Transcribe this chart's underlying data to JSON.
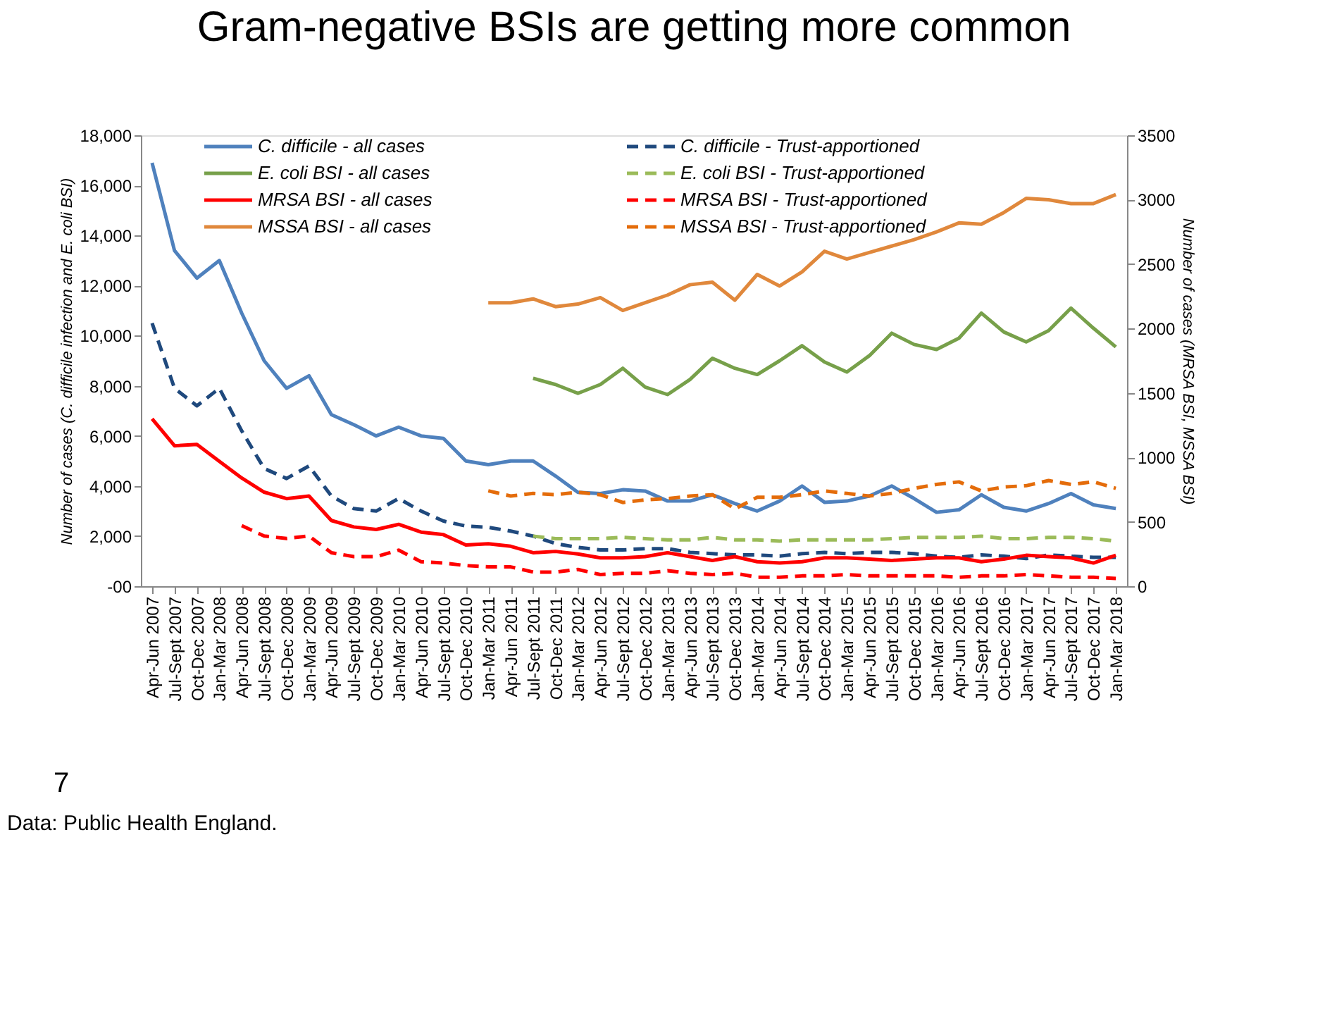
{
  "chart_data": {
    "type": "line",
    "title": "Gram-negative BSIs are getting more common",
    "categories": [
      "Apr-Jun 2007",
      "Jul-Sept 2007",
      "Oct-Dec 2007",
      "Jan-Mar 2008",
      "Apr-Jun 2008",
      "Jul-Sept 2008",
      "Oct-Dec 2008",
      "Jan-Mar 2009",
      "Apr-Jun 2009",
      "Jul-Sept 2009",
      "Oct-Dec 2009",
      "Jan-Mar 2010",
      "Apr-Jun 2010",
      "Jul-Sept 2010",
      "Oct-Dec 2010",
      "Jan-Mar 2011",
      "Apr-Jun 2011",
      "Jul-Sept 2011",
      "Oct-Dec 2011",
      "Jan-Mar 2012",
      "Apr-Jun 2012",
      "Jul-Sept 2012",
      "Oct-Dec 2012",
      "Jan-Mar 2013",
      "Apr-Jun 2013",
      "Jul-Sept 2013",
      "Oct-Dec 2013",
      "Jan-Mar 2014",
      "Apr-Jun 2014",
      "Jul-Sept 2014",
      "Oct-Dec 2014",
      "Jan-Mar 2015",
      "Apr-Jun 2015",
      "Jul-Sept 2015",
      "Oct-Dec 2015",
      "Jan-Mar 2016",
      "Apr-Jun 2016",
      "Jul-Sept 2016",
      "Oct-Dec 2016",
      "Jan-Mar 2017",
      "Apr-Jun 2017",
      "Jul-Sept 2017",
      "Oct-Dec 2017",
      "Jan-Mar 2018"
    ],
    "ylabel": "Number of cases (C. difficile infection and E. coli BSI)",
    "y2label": "Number of cases (MRSA BSI, MSSA BSI)",
    "ylim": [
      0,
      18000
    ],
    "yticks": [
      {
        "value": 0,
        "label": "-00"
      },
      {
        "value": 2000,
        "label": "2,000"
      },
      {
        "value": 4000,
        "label": "4,000"
      },
      {
        "value": 6000,
        "label": "6,000"
      },
      {
        "value": 8000,
        "label": "8,000"
      },
      {
        "value": 10000,
        "label": "10,000"
      },
      {
        "value": 12000,
        "label": "12,000"
      },
      {
        "value": 14000,
        "label": "14,000"
      },
      {
        "value": 16000,
        "label": "16,000"
      },
      {
        "value": 18000,
        "label": "18,000"
      }
    ],
    "y2lim": [
      0,
      3500
    ],
    "y2ticks": [
      0,
      500,
      1000,
      1500,
      2000,
      2500,
      3000,
      3500
    ],
    "grid": false,
    "legend": "top",
    "marker": "none",
    "annotations": [
      "7",
      "Data: Public Health England."
    ],
    "series": [
      {
        "name": "C. difficile - all cases",
        "color": "#4f81bd",
        "line_style": "solid",
        "values": [
          16900,
          13400,
          12300,
          13000,
          10900,
          9000,
          7900,
          8400,
          6850,
          6450,
          6000,
          6350,
          6000,
          5900,
          5000,
          4850,
          5000,
          5000,
          4400,
          3750,
          3700,
          3850,
          3800,
          3400,
          3400,
          3650,
          3300,
          3000,
          3400,
          4000,
          3350,
          3400,
          3600,
          4000,
          3500,
          2950,
          3050,
          3650,
          3150,
          3000,
          3300,
          3700,
          3250,
          3100
        ]
      },
      {
        "name": "E. coli BSI - all cases",
        "color": "#77a04a",
        "line_style": "solid",
        "values": [
          null,
          null,
          null,
          null,
          null,
          null,
          null,
          null,
          null,
          null,
          null,
          null,
          null,
          null,
          null,
          null,
          null,
          8300,
          8050,
          7700,
          8050,
          8700,
          7950,
          7650,
          8250,
          9100,
          8700,
          8450,
          9000,
          9600,
          8950,
          8550,
          9200,
          10100,
          9650,
          9450,
          9900,
          10900,
          10150,
          9750,
          10200,
          11100,
          10300,
          9550
        ]
      },
      {
        "name": "MRSA BSI - all cases",
        "color": "#ff0000",
        "line_style": "solid",
        "axis": "y2",
        "values": [
          1300,
          1090,
          1100,
          970,
          840,
          730,
          680,
          700,
          510,
          460,
          440,
          480,
          420,
          400,
          320,
          330,
          310,
          260,
          270,
          250,
          220,
          220,
          230,
          260,
          230,
          200,
          230,
          190,
          180,
          190,
          220,
          220,
          210,
          200,
          210,
          220,
          220,
          190,
          210,
          240,
          230,
          220,
          180,
          240
        ]
      },
      {
        "name": "MSSA BSI - all cases",
        "color": "#e0883c",
        "line_style": "solid",
        "axis": "y2",
        "values": [
          null,
          null,
          null,
          null,
          null,
          null,
          null,
          null,
          null,
          null,
          null,
          null,
          null,
          null,
          null,
          2200,
          2200,
          2230,
          2170,
          2190,
          2240,
          2140,
          2200,
          2260,
          2340,
          2360,
          2220,
          2420,
          2330,
          2440,
          2600,
          2540,
          2590,
          2640,
          2690,
          2750,
          2820,
          2810,
          2900,
          3010,
          3000,
          2970,
          2970,
          3040
        ]
      },
      {
        "name": "C. difficile - Trust-apportioned",
        "color": "#1f497d",
        "line_style": "dashed",
        "values": [
          10500,
          7900,
          7200,
          7900,
          6200,
          4700,
          4300,
          4800,
          3600,
          3100,
          3000,
          3500,
          3000,
          2600,
          2400,
          2350,
          2200,
          2000,
          1700,
          1550,
          1450,
          1450,
          1500,
          1500,
          1350,
          1300,
          1250,
          1250,
          1200,
          1300,
          1350,
          1300,
          1350,
          1350,
          1300,
          1200,
          1150,
          1250,
          1200,
          1100,
          1250,
          1200,
          1150,
          1150
        ]
      },
      {
        "name": "E. coli BSI - Trust-apportioned",
        "color": "#9bbb59",
        "line_style": "dashed",
        "values": [
          null,
          null,
          null,
          null,
          null,
          null,
          null,
          null,
          null,
          null,
          null,
          null,
          null,
          null,
          null,
          null,
          null,
          2000,
          1900,
          1900,
          1900,
          1950,
          1900,
          1850,
          1850,
          1950,
          1850,
          1850,
          1800,
          1850,
          1850,
          1850,
          1850,
          1900,
          1950,
          1950,
          1950,
          2000,
          1900,
          1900,
          1950,
          1950,
          1900,
          1800
        ]
      },
      {
        "name": "MRSA BSI - Trust-apportioned",
        "color": "#ff0000",
        "line_style": "dashed",
        "axis": "y2",
        "values": [
          null,
          null,
          null,
          null,
          470,
          390,
          370,
          390,
          260,
          230,
          230,
          280,
          190,
          180,
          160,
          150,
          150,
          110,
          110,
          130,
          90,
          100,
          100,
          120,
          100,
          90,
          100,
          70,
          70,
          80,
          80,
          90,
          80,
          80,
          80,
          80,
          70,
          80,
          80,
          90,
          80,
          70,
          70,
          60
        ]
      },
      {
        "name": "MSSA BSI - Trust-apportioned",
        "color": "#e46c0a",
        "line_style": "dashed",
        "axis": "y2",
        "values": [
          null,
          null,
          null,
          null,
          null,
          null,
          null,
          null,
          null,
          null,
          null,
          null,
          null,
          null,
          null,
          740,
          700,
          720,
          710,
          730,
          710,
          650,
          670,
          680,
          700,
          710,
          600,
          690,
          690,
          710,
          740,
          720,
          700,
          720,
          760,
          790,
          810,
          740,
          770,
          780,
          820,
          790,
          810,
          760
        ]
      }
    ]
  }
}
